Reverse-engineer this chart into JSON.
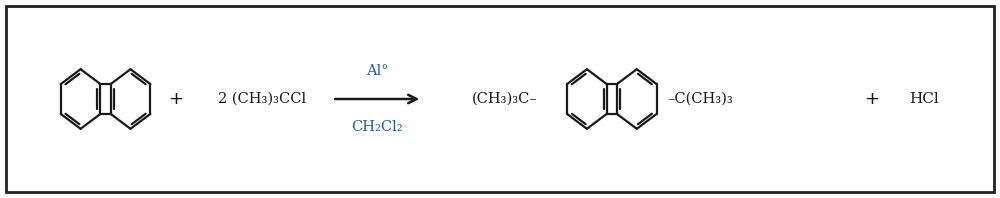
{
  "bg_color": "#ffffff",
  "border_color": "#222222",
  "line_color": "#1a1a1a",
  "text_color": "#2060a0",
  "figure_width": 10.0,
  "figure_height": 1.98,
  "dpi": 100,
  "reaction_above": "Al°",
  "reaction_below": "CH₂Cl₂",
  "reagent": "+ 2 (CH₃)₃CCl",
  "product_left_label": "(CH₃)₃C",
  "product_right_label": "C(CH₃)₃",
  "plus": "+",
  "hcl": "HCl"
}
